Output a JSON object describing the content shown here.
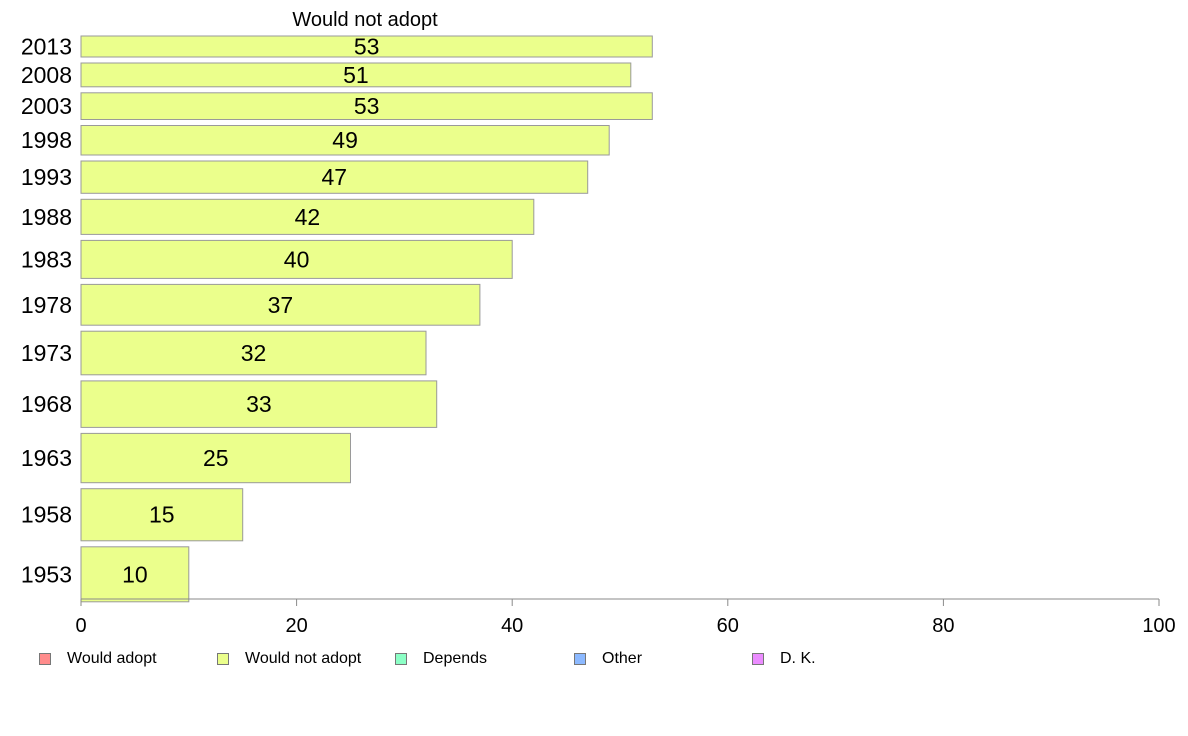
{
  "chart_data": {
    "type": "bar",
    "orientation": "horizontal",
    "title": "Would not adopt",
    "categories": [
      "2013",
      "2008",
      "2003",
      "1998",
      "1993",
      "1988",
      "1983",
      "1978",
      "1973",
      "1968",
      "1963",
      "1958",
      "1953"
    ],
    "series": [
      {
        "name": "Would not adopt",
        "values": [
          53,
          51,
          53,
          49,
          47,
          42,
          40,
          37,
          32,
          33,
          25,
          15,
          10
        ],
        "color": "#ebff8c"
      }
    ],
    "xlim": [
      0,
      100
    ],
    "xticks": [
      "0",
      "20",
      "40",
      "60",
      "80",
      "100"
    ],
    "grid": false,
    "legend_position": "bottom",
    "legend": [
      {
        "label": "Would adopt",
        "color": "#ff8c8c"
      },
      {
        "label": "Would not adopt",
        "color": "#ebff8c"
      },
      {
        "label": "Depends",
        "color": "#8cffc6"
      },
      {
        "label": "Other",
        "color": "#8cb9ff"
      },
      {
        "label": "D. K.",
        "color": "#eb8cff"
      }
    ]
  }
}
